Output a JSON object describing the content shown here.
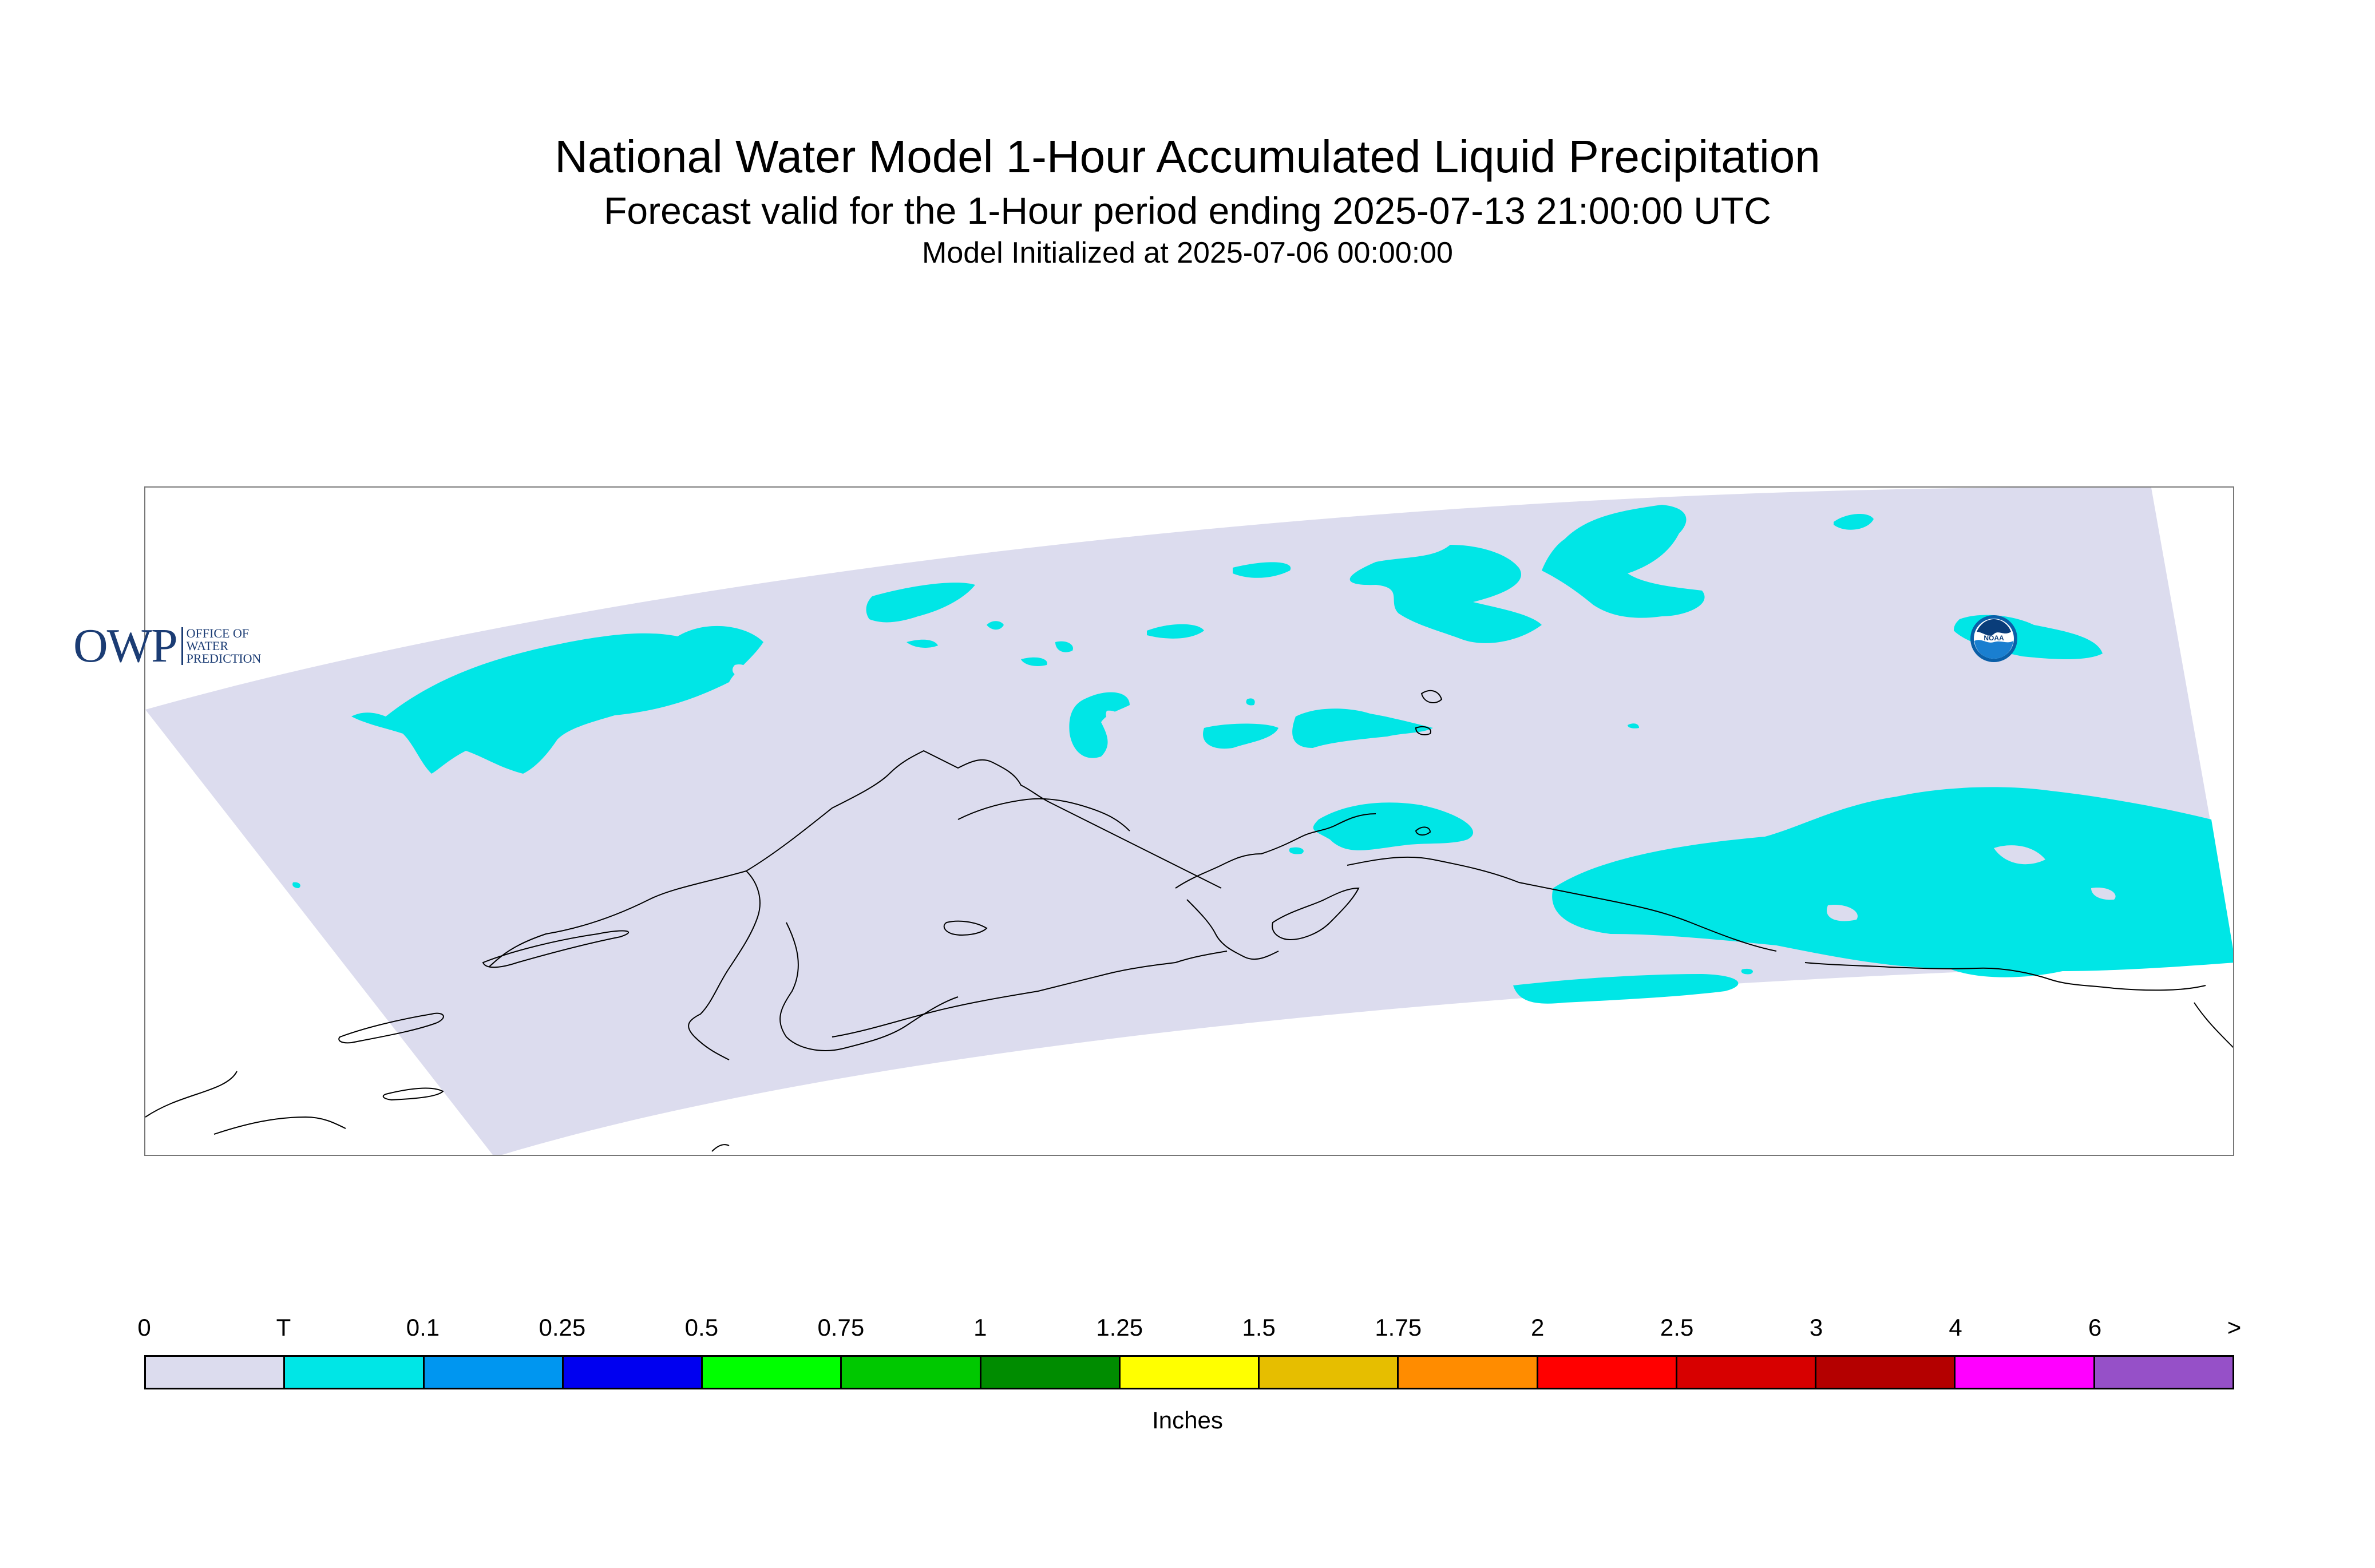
{
  "title": {
    "main": "National Water Model 1-Hour Accumulated Liquid Precipitation",
    "forecast": "Forecast valid for the 1-Hour period ending 2025-07-13 21:00:00 UTC",
    "initialized": "Model Initialized at 2025-07-06 00:00:00"
  },
  "map": {
    "domain_color": "#dcdcee",
    "precip_color": "#00e6e6",
    "coast_color": "#000000",
    "logos": {
      "owp": {
        "mark": "OWP",
        "line1": "OFFICE OF",
        "line2": "WATER",
        "line3": "PREDICTION"
      },
      "noaa": {
        "mark": "NOAA"
      }
    }
  },
  "legend": {
    "units": "Inches",
    "ticks": [
      "0",
      "T",
      "0.1",
      "0.25",
      "0.5",
      "0.75",
      "1",
      "1.25",
      "1.5",
      "1.75",
      "2",
      "2.5",
      "3",
      "4",
      "6",
      ">"
    ],
    "colors": [
      "#dcdcee",
      "#00e6e6",
      "#0096f0",
      "#0000f0",
      "#00ff00",
      "#00c800",
      "#008c00",
      "#ffff00",
      "#e6be00",
      "#ff8c00",
      "#ff0000",
      "#d70000",
      "#b40000",
      "#ff00ff",
      "#9650c8"
    ]
  }
}
